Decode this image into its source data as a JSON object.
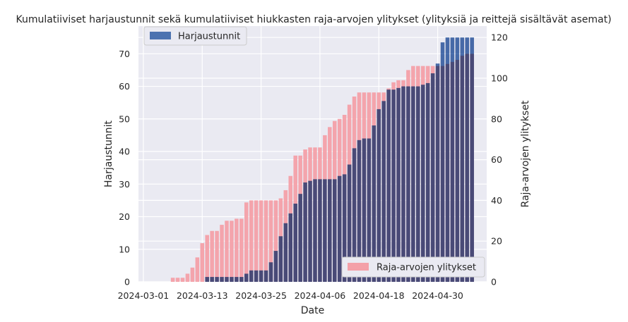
{
  "chart_data": {
    "type": "bar",
    "title": "Kumulatiiviset harjaustunnit sekä kumulatiiviset hiukkasten raja-arvojen ylitykset (ylityksiä ja reittejä sisältävät asemat)",
    "xlabel": "Date",
    "ylabel_left": "Harjaustunnit",
    "ylabel_right": "Raja-arvojen ylitykset",
    "ylim_left": [
      0,
      78.5
    ],
    "ylim_right": [
      0,
      125.6
    ],
    "yticks_left": [
      0,
      10,
      20,
      30,
      40,
      50,
      60,
      70
    ],
    "yticks_right": [
      0,
      20,
      40,
      60,
      80,
      100,
      120
    ],
    "x_start_date": "2024-02-29",
    "x_end_date": "2024-05-10",
    "x_tick_labels": [
      "2024-03-01",
      "2024-03-13",
      "2024-03-25",
      "2024-04-06",
      "2024-04-18",
      "2024-04-30"
    ],
    "grid": true,
    "series": [
      {
        "name": "Harjaustunnit",
        "axis": "left",
        "color": "#4c72b0",
        "legend_position": "upper left",
        "dates": [
          "2024-03-02",
          "2024-03-03",
          "2024-03-04",
          "2024-03-05",
          "2024-03-06",
          "2024-03-07",
          "2024-03-08",
          "2024-03-09",
          "2024-03-10",
          "2024-03-11",
          "2024-03-12",
          "2024-03-13",
          "2024-03-14",
          "2024-03-15",
          "2024-03-16",
          "2024-03-17",
          "2024-03-18",
          "2024-03-19",
          "2024-03-20",
          "2024-03-21",
          "2024-03-22",
          "2024-03-23",
          "2024-03-24",
          "2024-03-25",
          "2024-03-26",
          "2024-03-27",
          "2024-03-28",
          "2024-03-29",
          "2024-03-30",
          "2024-03-31",
          "2024-04-01",
          "2024-04-02",
          "2024-04-03",
          "2024-04-04",
          "2024-04-05",
          "2024-04-06",
          "2024-04-07",
          "2024-04-08",
          "2024-04-09",
          "2024-04-10",
          "2024-04-11",
          "2024-04-12",
          "2024-04-13",
          "2024-04-14",
          "2024-04-15",
          "2024-04-16",
          "2024-04-17",
          "2024-04-18",
          "2024-04-19",
          "2024-04-20",
          "2024-04-21",
          "2024-04-22",
          "2024-04-23",
          "2024-04-24",
          "2024-04-25",
          "2024-04-26",
          "2024-04-27",
          "2024-04-28",
          "2024-04-29",
          "2024-04-30",
          "2024-05-01",
          "2024-05-02",
          "2024-05-03",
          "2024-05-04",
          "2024-05-05",
          "2024-05-06",
          "2024-05-07"
        ],
        "values": [
          0,
          0,
          0,
          0,
          0,
          0,
          0,
          0,
          0,
          0,
          0,
          0,
          1.5,
          1.5,
          1.5,
          1.5,
          1.5,
          1.5,
          1.5,
          1.5,
          2.5,
          3.5,
          3.5,
          3.5,
          3.5,
          6,
          9.5,
          14,
          18,
          21,
          24,
          27,
          30.5,
          31,
          31.5,
          31.5,
          31.5,
          31.5,
          31.5,
          32.5,
          33,
          36,
          41,
          43.5,
          44,
          44,
          48,
          53,
          55.5,
          59,
          59,
          59.5,
          60,
          60,
          60,
          60,
          60.5,
          61,
          64,
          67,
          73.5,
          75,
          75,
          75,
          75,
          75,
          75
        ]
      },
      {
        "name": "Raja-arvojen ylitykset",
        "axis": "right",
        "color": "#f4a0a8",
        "legend_position": "lower right",
        "dates": [
          "2024-03-02",
          "2024-03-03",
          "2024-03-04",
          "2024-03-05",
          "2024-03-06",
          "2024-03-07",
          "2024-03-08",
          "2024-03-09",
          "2024-03-10",
          "2024-03-11",
          "2024-03-12",
          "2024-03-13",
          "2024-03-14",
          "2024-03-15",
          "2024-03-16",
          "2024-03-17",
          "2024-03-18",
          "2024-03-19",
          "2024-03-20",
          "2024-03-21",
          "2024-03-22",
          "2024-03-23",
          "2024-03-24",
          "2024-03-25",
          "2024-03-26",
          "2024-03-27",
          "2024-03-28",
          "2024-03-29",
          "2024-03-30",
          "2024-03-31",
          "2024-04-01",
          "2024-04-02",
          "2024-04-03",
          "2024-04-04",
          "2024-04-05",
          "2024-04-06",
          "2024-04-07",
          "2024-04-08",
          "2024-04-09",
          "2024-04-10",
          "2024-04-11",
          "2024-04-12",
          "2024-04-13",
          "2024-04-14",
          "2024-04-15",
          "2024-04-16",
          "2024-04-17",
          "2024-04-18",
          "2024-04-19",
          "2024-04-20",
          "2024-04-21",
          "2024-04-22",
          "2024-04-23",
          "2024-04-24",
          "2024-04-25",
          "2024-04-26",
          "2024-04-27",
          "2024-04-28",
          "2024-04-29",
          "2024-04-30",
          "2024-05-01",
          "2024-05-02",
          "2024-05-03",
          "2024-05-04",
          "2024-05-05",
          "2024-05-06",
          "2024-05-07"
        ],
        "values": [
          0,
          0,
          0,
          0,
          0,
          2,
          2,
          2,
          4,
          7,
          12,
          19,
          23,
          25,
          25,
          28,
          30,
          30,
          31,
          31,
          39,
          40,
          40,
          40,
          40,
          40,
          40,
          41,
          45,
          52,
          62,
          62,
          65,
          66,
          66,
          66,
          72,
          76,
          79,
          80,
          82,
          87,
          91,
          93,
          93,
          93,
          93,
          93,
          93,
          95,
          98,
          99,
          99,
          104,
          106,
          106,
          106,
          106,
          106,
          106,
          106,
          107,
          108,
          109,
          111,
          112,
          112
        ]
      }
    ]
  }
}
